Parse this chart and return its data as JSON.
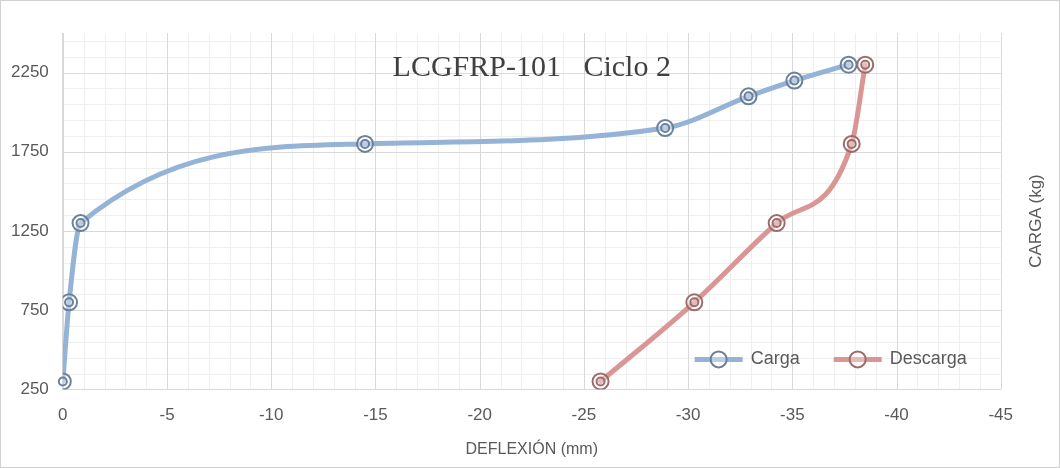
{
  "chart_data": {
    "type": "line",
    "title": "LCGFRP-101   Ciclo 2",
    "xlabel": "DEFLEXIÓN (mm)",
    "ylabel": "CARGA (kg)",
    "xlim": [
      0,
      -45
    ],
    "xticks": [
      0,
      -5,
      -10,
      -15,
      -20,
      -25,
      -30,
      -35,
      -40,
      -45
    ],
    "ylim": [
      250,
      2500
    ],
    "yticks": [
      250,
      750,
      1250,
      1750,
      2250
    ],
    "grid": true,
    "legend": "bottom right",
    "marker": "circle",
    "line_style": "solid",
    "series": [
      {
        "name": "Carga",
        "color": "#95b3d7",
        "x": [
          0,
          -0.3,
          -0.85,
          -14.5,
          -28.9,
          -32.9,
          -35.1,
          -37.7
        ],
        "values": [
          300,
          800,
          1300,
          1800,
          1900,
          2100,
          2200,
          2300
        ]
      },
      {
        "name": "Descarga",
        "color": "#d99694",
        "x": [
          -25.8,
          -30.3,
          -34.25,
          -37.85,
          -38.5
        ],
        "values": [
          300,
          800,
          1300,
          1800,
          2300
        ]
      }
    ]
  }
}
